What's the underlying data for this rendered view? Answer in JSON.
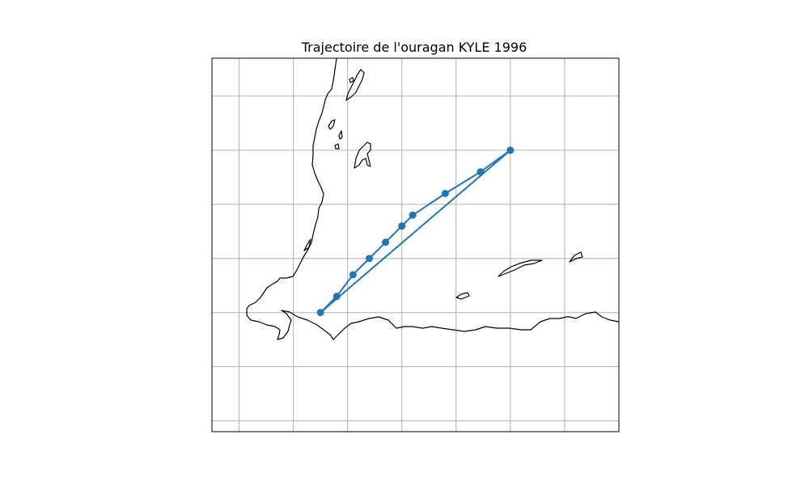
{
  "chart_data": {
    "type": "line",
    "title": "Trajectoire de l'ouragan KYLE 1996",
    "xlabel": "",
    "ylabel": "",
    "grid": true,
    "xlim": [
      -90.5,
      -83.0
    ],
    "ylim": [
      12.8,
      19.7
    ],
    "xgrid": [
      -90,
      -89,
      -88,
      -87,
      -86,
      -85,
      -84,
      -83
    ],
    "ygrid": [
      13,
      14,
      15,
      16,
      17,
      18,
      19
    ],
    "series": [
      {
        "color": "#1f77b4",
        "x": [
          -85.0,
          -85.55,
          -86.2,
          -86.8,
          -87.0,
          -87.3,
          -87.6,
          -87.9,
          -88.2,
          -88.5
        ],
        "y": [
          18.0,
          17.6,
          17.2,
          16.8,
          16.6,
          16.3,
          16.0,
          15.7,
          15.3,
          15.0
        ]
      },
      {
        "color": "#1f77b4",
        "x": [
          -88.5,
          -85.0
        ],
        "y": [
          15.0,
          18.0
        ]
      }
    ]
  }
}
